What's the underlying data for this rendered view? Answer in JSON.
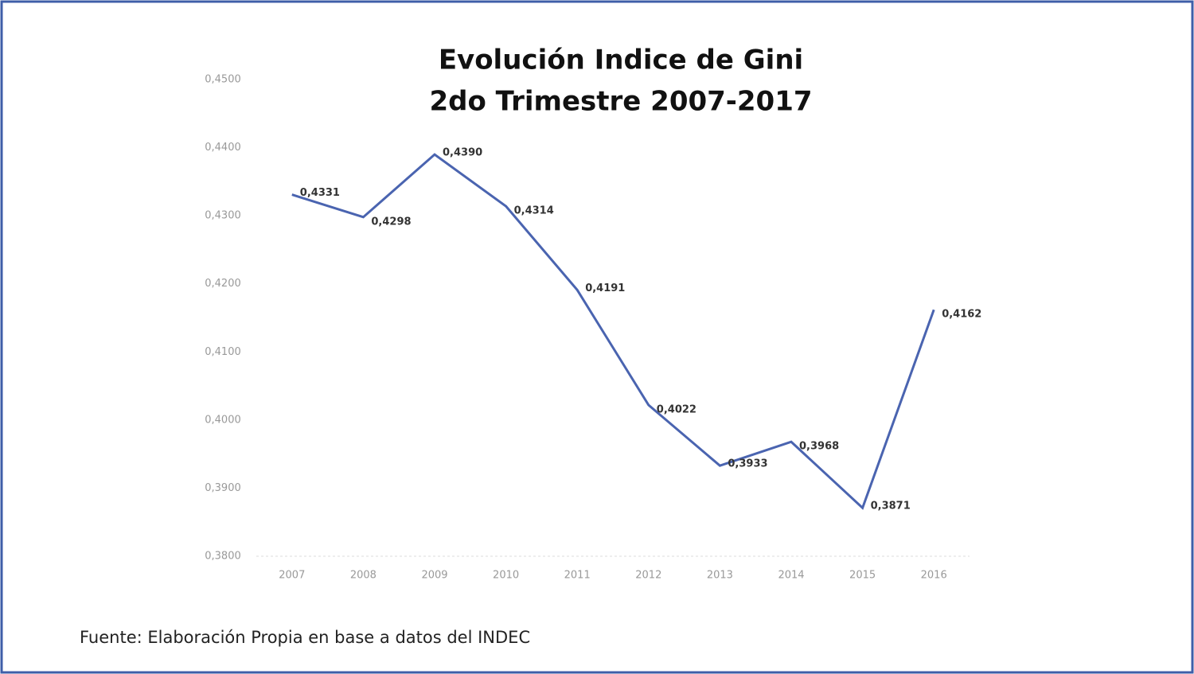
{
  "chart_data": {
    "type": "line",
    "title": "Evolución Indice de Gini",
    "subtitle": "2do Trimestre 2007-2017",
    "categories": [
      "2007",
      "2008",
      "2009",
      "2010",
      "2011",
      "2012",
      "2013",
      "2014",
      "2015",
      "2016"
    ],
    "series": [
      {
        "color": "#4a64b0",
        "values": [
          0.4331,
          0.4298,
          0.439,
          0.4314,
          0.4191,
          0.4022,
          0.3933,
          0.3968,
          0.3871,
          0.4162
        ],
        "value_labels": [
          "0,4331",
          "0,4298",
          "0,4390",
          "0,4314",
          "0,4191",
          "0,4022",
          "0,3933",
          "0,3968",
          "0,3871",
          "0,4162"
        ]
      }
    ],
    "ylim": [
      0.38,
      0.45
    ],
    "yticks": [
      {
        "value": 0.38,
        "label": "0,3800"
      },
      {
        "value": 0.39,
        "label": "0,3900"
      },
      {
        "value": 0.4,
        "label": "0,4000"
      },
      {
        "value": 0.41,
        "label": "0,4100"
      },
      {
        "value": 0.42,
        "label": "0,4200"
      },
      {
        "value": 0.43,
        "label": "0,4300"
      },
      {
        "value": 0.44,
        "label": "0,4400"
      },
      {
        "value": 0.45,
        "label": "0,4500"
      }
    ],
    "grid": false,
    "source": "Fuente: Elaboración Propia en base a datos del INDEC"
  }
}
